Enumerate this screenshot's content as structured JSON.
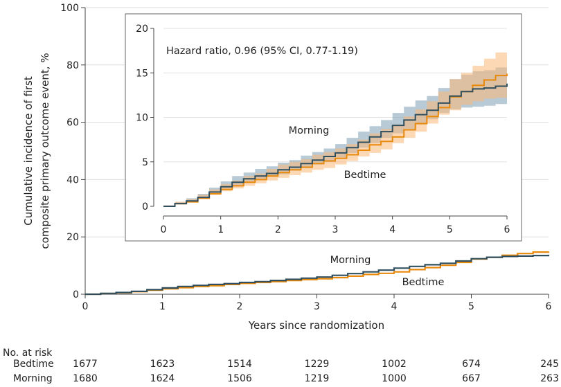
{
  "chart_data": {
    "type": "line",
    "ylabel_line1": "Cumulative incidence of first",
    "ylabel_line2": "composite primary outcome event, %",
    "xlabel": "Years since randomization",
    "xlim": [
      0,
      6
    ],
    "ylim": [
      0,
      100
    ],
    "x_ticks": [
      0,
      1,
      2,
      3,
      4,
      5,
      6
    ],
    "y_ticks": [
      0,
      20,
      40,
      60,
      80,
      100
    ],
    "grid": true,
    "series": [
      {
        "name": "Morning",
        "color": "#2f4f5f",
        "x": [
          0,
          0.2,
          0.4,
          0.6,
          0.8,
          1.0,
          1.2,
          1.4,
          1.6,
          1.8,
          2.0,
          2.2,
          2.4,
          2.6,
          2.8,
          3.0,
          3.2,
          3.4,
          3.6,
          3.8,
          4.0,
          4.2,
          4.4,
          4.6,
          4.8,
          5.0,
          5.2,
          5.4,
          5.6,
          5.8,
          6.0
        ],
        "y": [
          0,
          0.3,
          0.6,
          1.0,
          1.6,
          2.2,
          2.7,
          3.1,
          3.4,
          3.7,
          4.1,
          4.4,
          4.8,
          5.2,
          5.6,
          6.0,
          6.6,
          7.2,
          7.8,
          8.4,
          9.1,
          9.7,
          10.3,
          10.8,
          11.6,
          12.4,
          12.9,
          13.2,
          13.3,
          13.5,
          13.8
        ],
        "ci_lower": [
          0,
          0.1,
          0.3,
          0.6,
          1.1,
          1.6,
          2.0,
          2.4,
          2.7,
          3.0,
          3.3,
          3.6,
          4.0,
          4.3,
          4.7,
          5.0,
          5.5,
          6.0,
          6.6,
          7.1,
          7.7,
          8.2,
          8.7,
          9.2,
          9.8,
          10.5,
          10.9,
          11.1,
          11.2,
          11.3,
          11.5
        ],
        "ci_upper": [
          0,
          0.5,
          0.9,
          1.4,
          2.1,
          2.8,
          3.4,
          3.8,
          4.2,
          4.5,
          4.9,
          5.2,
          5.7,
          6.1,
          6.5,
          7.0,
          7.7,
          8.4,
          9.0,
          9.7,
          10.5,
          11.2,
          11.9,
          12.4,
          13.3,
          14.3,
          14.8,
          15.2,
          15.3,
          15.6,
          16.0
        ]
      },
      {
        "name": "Bedtime",
        "color": "#e8890c",
        "x": [
          0,
          0.2,
          0.4,
          0.6,
          0.8,
          1.0,
          1.2,
          1.4,
          1.6,
          1.8,
          2.0,
          2.2,
          2.4,
          2.6,
          2.8,
          3.0,
          3.2,
          3.4,
          3.6,
          3.8,
          4.0,
          4.2,
          4.4,
          4.6,
          4.8,
          5.0,
          5.2,
          5.4,
          5.6,
          5.8,
          6.0
        ],
        "y": [
          0,
          0.3,
          0.5,
          0.9,
          1.4,
          1.9,
          2.3,
          2.7,
          3.0,
          3.4,
          3.8,
          4.1,
          4.4,
          4.8,
          5.1,
          5.4,
          5.8,
          6.3,
          6.9,
          7.3,
          7.8,
          8.6,
          9.3,
          10.1,
          11.1,
          12.3,
          12.9,
          13.6,
          14.2,
          14.7,
          14.9
        ],
        "ci_lower": [
          0,
          0.1,
          0.2,
          0.5,
          0.9,
          1.3,
          1.7,
          2.0,
          2.3,
          2.6,
          2.9,
          3.2,
          3.5,
          3.8,
          4.1,
          4.3,
          4.7,
          5.1,
          5.6,
          6.0,
          6.4,
          7.1,
          7.7,
          8.4,
          9.3,
          10.3,
          10.8,
          11.4,
          11.8,
          12.1,
          12.2
        ],
        "ci_upper": [
          0,
          0.5,
          0.8,
          1.3,
          1.9,
          2.5,
          2.9,
          3.4,
          3.7,
          4.2,
          4.7,
          5.0,
          5.3,
          5.8,
          6.1,
          6.5,
          7.0,
          7.5,
          8.2,
          8.7,
          9.2,
          10.1,
          10.9,
          11.8,
          12.9,
          14.3,
          15.0,
          15.8,
          16.6,
          17.3,
          17.6
        ]
      }
    ],
    "inset": {
      "xlim": [
        0,
        6
      ],
      "ylim": [
        0,
        20
      ],
      "x_ticks": [
        0,
        1,
        2,
        3,
        4,
        5,
        6
      ],
      "y_ticks": [
        0,
        5,
        10,
        15,
        20
      ],
      "grid": true,
      "annotation": "Hazard ratio, 0.96 (95% CI, 0.77-1.19)",
      "shows_confidence_bands": true
    },
    "risk_table": {
      "title": "No. at risk",
      "times": [
        0,
        1,
        2,
        3,
        4,
        5,
        6
      ],
      "rows": [
        {
          "name": "Bedtime",
          "values": [
            1677,
            1623,
            1514,
            1229,
            1002,
            674,
            245
          ]
        },
        {
          "name": "Morning",
          "values": [
            1680,
            1624,
            1506,
            1219,
            1000,
            667,
            263
          ]
        }
      ]
    }
  }
}
